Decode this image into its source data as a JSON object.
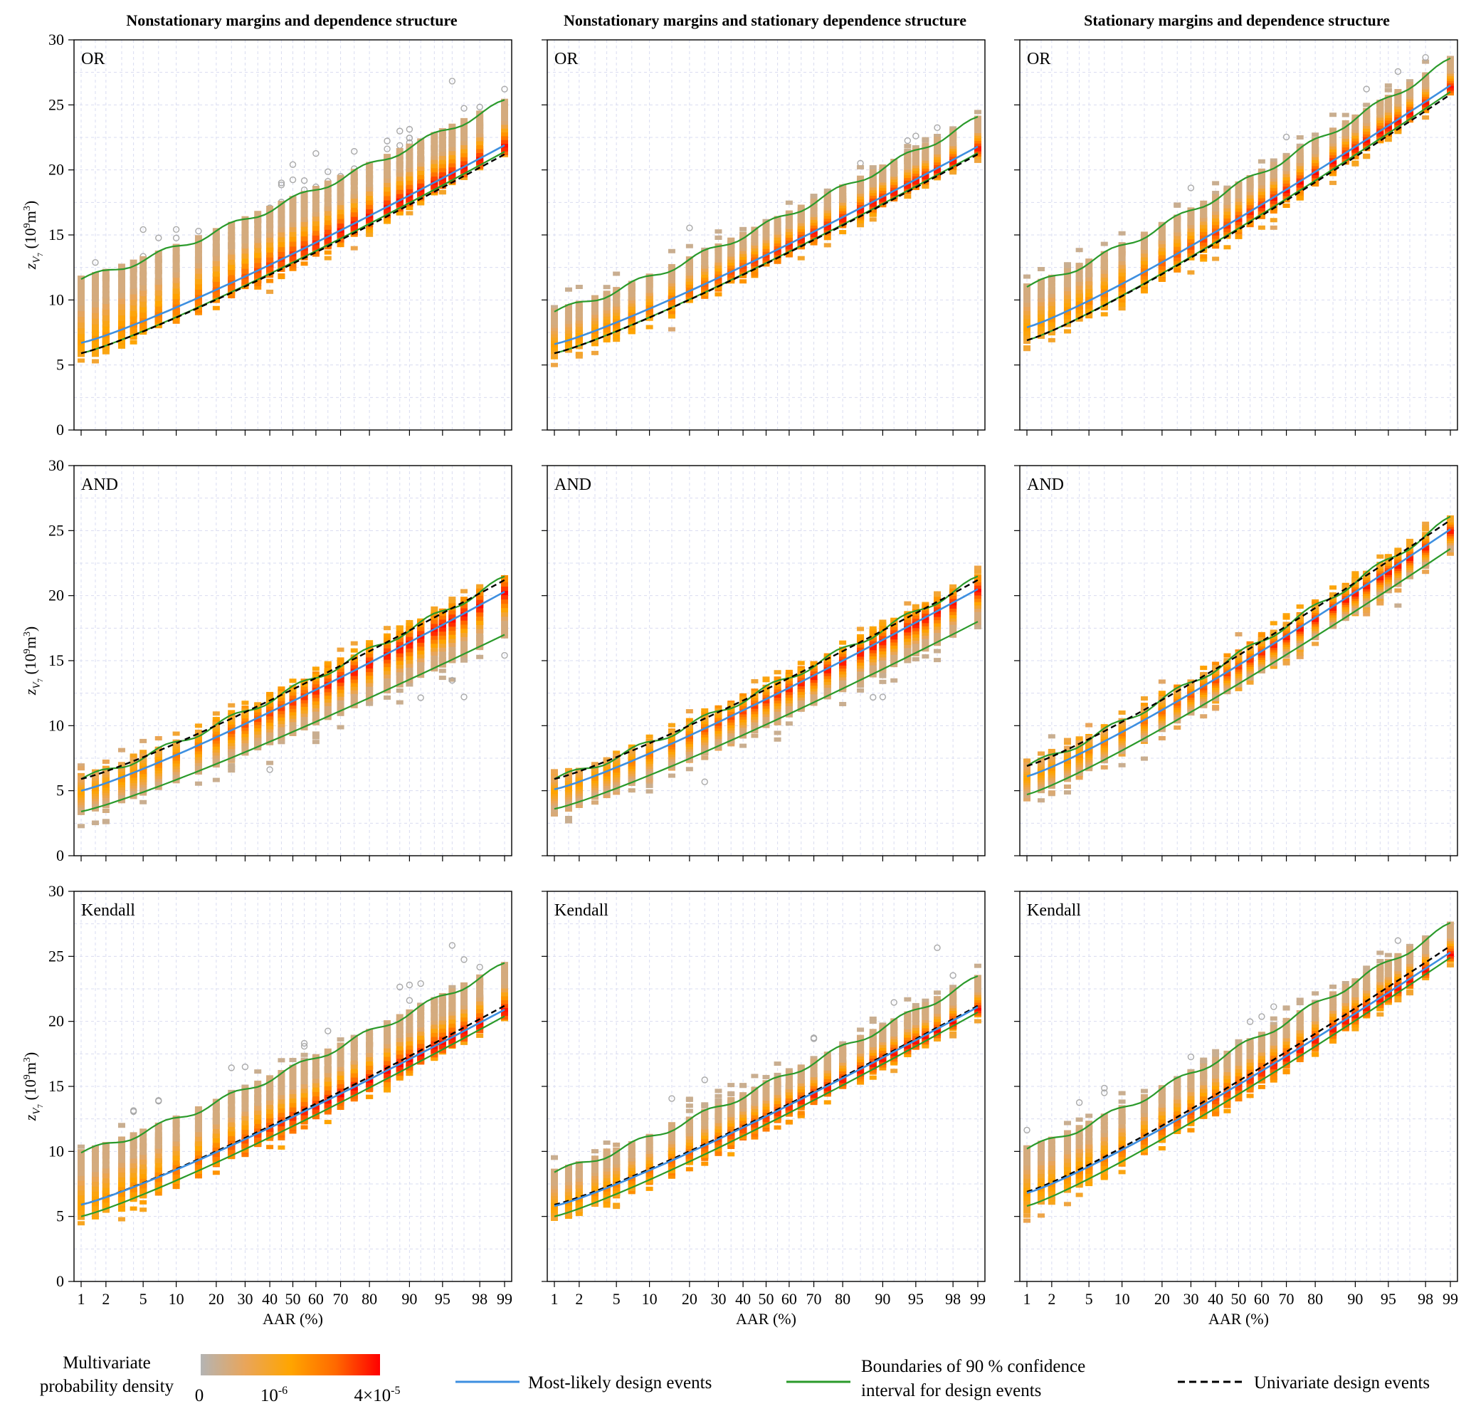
{
  "figure": {
    "column_titles": [
      "Nonstationary margins and dependence structure",
      "Nonstationary margins and stationary dependence structure",
      "Stationary margins and dependence structure"
    ],
    "row_labels": [
      "OR",
      "AND",
      "Kendall"
    ],
    "xlabel": "AAR (%)",
    "ylabel_main": "z",
    "ylabel_sub": "V",
    "ylabel_subsub": "7",
    "ylabel_unit_open": "(10",
    "ylabel_unit_exp": "9",
    "ylabel_unit_mid": "m",
    "ylabel_unit_exp2": "3",
    "ylabel_unit_close": ")"
  },
  "legend": {
    "density_title_line1": "Multivariate",
    "density_title_line2": "probability density",
    "density_ticks": {
      "zero": "0",
      "mid_base": "10",
      "mid_exp": "-6",
      "max_base": "4×10",
      "max_exp": "-5"
    },
    "density_colors": [
      "#b4b4b4",
      "#e9a55a",
      "#ffa500",
      "#ff6a00",
      "#ff0000"
    ],
    "most_likely": "Most-likely design events",
    "ci_line1": "Boundaries of 90 % confidence",
    "ci_line2": "interval for design events",
    "univariate": "Univariate design events",
    "colors": {
      "most_likely": "#3d8fe0",
      "ci": "#2a9a2a",
      "univariate": "#000000"
    }
  },
  "chart_data": {
    "type": "scatter",
    "x_scale": "probit",
    "x_ticks": [
      1,
      2,
      5,
      10,
      20,
      30,
      40,
      50,
      60,
      70,
      80,
      90,
      95,
      98,
      99
    ],
    "x_tick_labels": [
      "1",
      "2",
      "5",
      "10",
      "20",
      "30",
      "40",
      "50",
      "60",
      "70",
      "80",
      "90",
      "95",
      "98",
      "99"
    ],
    "aar_levels": [
      1,
      1.5,
      2,
      3,
      4,
      5,
      7,
      10,
      15,
      20,
      25,
      30,
      35,
      40,
      45,
      50,
      55,
      60,
      65,
      70,
      75,
      80,
      85,
      88,
      90,
      92,
      94,
      95,
      96,
      97,
      98,
      99
    ],
    "ylim": [
      0,
      30
    ],
    "y_ticks": [
      0,
      5,
      10,
      15,
      20,
      25,
      30
    ],
    "grid": true,
    "panels": [
      {
        "row": "OR",
        "column": 1,
        "univariate": [
          5.9,
          21.2
        ],
        "most_likely": [
          6.7,
          21.9
        ],
        "ci_upper": [
          11.6,
          25.2
        ],
        "ci_lower": [
          5.9,
          21.4
        ],
        "point_spread": [
          3.0,
          1.8
        ]
      },
      {
        "row": "OR",
        "column": 2,
        "univariate": [
          5.9,
          21.2
        ],
        "most_likely": [
          6.6,
          21.8
        ],
        "ci_upper": [
          9.1,
          23.9
        ],
        "ci_lower": [
          5.9,
          21.3
        ],
        "point_spread": [
          2.5,
          1.8
        ]
      },
      {
        "row": "OR",
        "column": 3,
        "univariate": [
          6.9,
          25.8
        ],
        "most_likely": [
          7.9,
          26.5
        ],
        "ci_upper": [
          11.0,
          28.4
        ],
        "ci_lower": [
          6.9,
          26.0
        ],
        "point_spread": [
          3.0,
          2.0
        ]
      },
      {
        "row": "AND",
        "column": 1,
        "univariate": [
          5.9,
          21.2
        ],
        "most_likely": [
          5.0,
          20.3
        ],
        "ci_upper": [
          5.9,
          21.3
        ],
        "ci_lower": [
          3.4,
          17.0
        ],
        "point_spread": [
          2.0,
          3.0
        ]
      },
      {
        "row": "AND",
        "column": 2,
        "univariate": [
          5.9,
          21.2
        ],
        "most_likely": [
          5.1,
          20.5
        ],
        "ci_upper": [
          5.9,
          21.3
        ],
        "ci_lower": [
          3.6,
          18.0
        ],
        "point_spread": [
          2.0,
          2.5
        ]
      },
      {
        "row": "AND",
        "column": 3,
        "univariate": [
          6.9,
          25.8
        ],
        "most_likely": [
          6.1,
          25.1
        ],
        "ci_upper": [
          6.9,
          25.9
        ],
        "ci_lower": [
          4.7,
          23.6
        ],
        "point_spread": [
          2.0,
          2.8
        ]
      },
      {
        "row": "Kendall",
        "column": 1,
        "univariate": [
          5.9,
          21.2
        ],
        "most_likely": [
          5.9,
          20.9
        ],
        "ci_upper": [
          9.9,
          24.3
        ],
        "ci_lower": [
          5.0,
          20.4
        ],
        "point_spread": [
          3.5,
          2.5
        ]
      },
      {
        "row": "Kendall",
        "column": 2,
        "univariate": [
          5.9,
          21.2
        ],
        "most_likely": [
          5.8,
          21.1
        ],
        "ci_upper": [
          8.4,
          23.3
        ],
        "ci_lower": [
          5.0,
          20.7
        ],
        "point_spread": [
          3.0,
          2.0
        ]
      },
      {
        "row": "Kendall",
        "column": 3,
        "univariate": [
          6.9,
          25.8
        ],
        "most_likely": [
          6.8,
          25.3
        ],
        "ci_upper": [
          10.2,
          27.4
        ],
        "ci_lower": [
          5.8,
          24.9
        ],
        "point_spread": [
          3.0,
          2.0
        ]
      }
    ]
  }
}
